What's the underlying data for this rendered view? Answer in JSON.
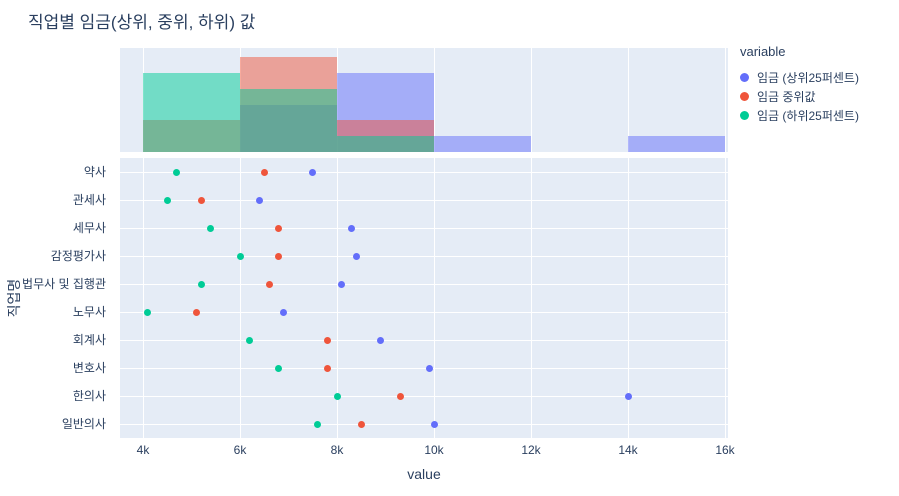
{
  "title": "직업별 임금(상위, 중위, 하위) 값",
  "axes": {
    "x_title": "value",
    "y_title": "직업명"
  },
  "legend": {
    "title": "variable",
    "items": [
      {
        "label": "임금 (상위25퍼센트)",
        "color": "#636EFA"
      },
      {
        "label": "임금 중위값",
        "color": "#EF553B"
      },
      {
        "label": "임금 (하위25퍼센트)",
        "color": "#00CC96"
      }
    ]
  },
  "colors": {
    "plot_background": "#E5ECF6",
    "grid": "#FFFFFF",
    "text": "#2A3F5F",
    "series_blue": "#636EFA",
    "series_red": "#EF553B",
    "series_green": "#00CC96"
  },
  "chart_data": {
    "type": "scatter",
    "subtype": "categorical-dot-plot-with-top-marginal-histogram",
    "title": "직업별 임금(상위, 중위, 하위) 값",
    "xlabel": "value",
    "ylabel": "직업명",
    "legend_title": "variable",
    "legend_position": "right",
    "grid": true,
    "categories": [
      "약사",
      "관세사",
      "세무사",
      "감정평가사",
      "법무사 및 집행관",
      "노무사",
      "회계사",
      "변호사",
      "한의사",
      "일반의사"
    ],
    "series": [
      {
        "name": "임금 (상위25퍼센트)",
        "color": "#636EFA",
        "values": [
          7500,
          6400,
          8300,
          8400,
          8100,
          6900,
          8900,
          9900,
          14000,
          10000
        ]
      },
      {
        "name": "임금 중위값",
        "color": "#EF553B",
        "values": [
          6500,
          5200,
          6800,
          6800,
          6600,
          5100,
          7800,
          7800,
          9300,
          8500
        ]
      },
      {
        "name": "임금 (하위25퍼센트)",
        "color": "#00CC96",
        "values": [
          4700,
          4500,
          5400,
          6000,
          5200,
          4100,
          6200,
          6800,
          8000,
          7600
        ]
      }
    ],
    "x_ticks": [
      4000,
      6000,
      8000,
      10000,
      12000,
      14000,
      16000
    ],
    "x_tick_labels": [
      "4k",
      "6k",
      "8k",
      "10k",
      "12k",
      "14k",
      "16k"
    ],
    "x_range": [
      3530,
      16060
    ],
    "marginal_histogram": {
      "position": "top",
      "bin_start": 4000,
      "bin_width": 2000,
      "bin_count": 6,
      "opacity": 0.5,
      "counts": {
        "임금 (상위25퍼센트)": [
          0,
          3,
          5,
          1,
          0,
          1
        ],
        "임금 중위값": [
          2,
          6,
          2,
          0,
          0,
          0
        ],
        "임금 (하위25퍼센트)": [
          5,
          4,
          1,
          0,
          0,
          0
        ]
      }
    }
  }
}
